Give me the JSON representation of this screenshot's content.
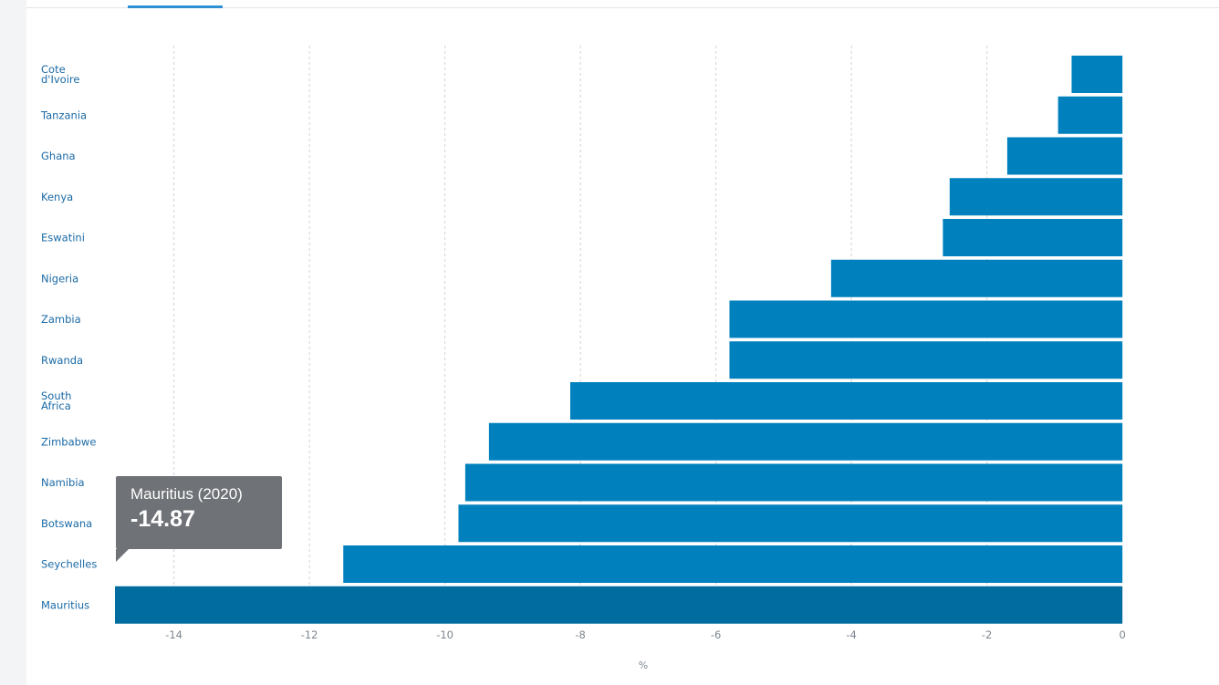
{
  "colors": {
    "bar": "#0080bd",
    "bar_highlight": "#006c9f",
    "grid": "#cfd3d7",
    "category_label": "#1a6aa6",
    "tick_label": "#7d8790",
    "tooltip_bg": "#6f7276"
  },
  "tooltip": {
    "title": "Mauritius (2020)",
    "value": "-14.87"
  },
  "chart_data": {
    "type": "bar",
    "orientation": "horizontal",
    "categories": [
      "Cote d'Ivoire",
      "Tanzania",
      "Ghana",
      "Kenya",
      "Eswatini",
      "Nigeria",
      "Zambia",
      "Rwanda",
      "South Africa",
      "Zimbabwe",
      "Namibia",
      "Botswana",
      "Seychelles",
      "Mauritius"
    ],
    "category_lines": [
      [
        "Cote",
        "d'Ivoire"
      ],
      [
        "Tanzania"
      ],
      [
        "Ghana"
      ],
      [
        "Kenya"
      ],
      [
        "Eswatini"
      ],
      [
        "Nigeria"
      ],
      [
        "Zambia"
      ],
      [
        "Rwanda"
      ],
      [
        "South",
        "Africa"
      ],
      [
        "Zimbabwe"
      ],
      [
        "Namibia"
      ],
      [
        "Botswana"
      ],
      [
        "Seychelles"
      ],
      [
        "Mauritius"
      ]
    ],
    "values": [
      -0.75,
      -0.95,
      -1.7,
      -2.55,
      -2.65,
      -4.3,
      -5.8,
      -5.8,
      -8.15,
      -9.35,
      -9.7,
      -9.8,
      -11.5,
      -14.87
    ],
    "highlighted": "Mauritius",
    "xlabel": "%",
    "ylabel": "",
    "xlim": [
      -14.87,
      0.2
    ],
    "xticks": [
      -14,
      -12,
      -10,
      -8,
      -6,
      -4,
      -2,
      0
    ],
    "xtick_labels": [
      "-14",
      "-12",
      "-10",
      "-8",
      "-6",
      "-4",
      "-2",
      "0"
    ],
    "grid": "vertical-dashed",
    "legend": "none"
  }
}
